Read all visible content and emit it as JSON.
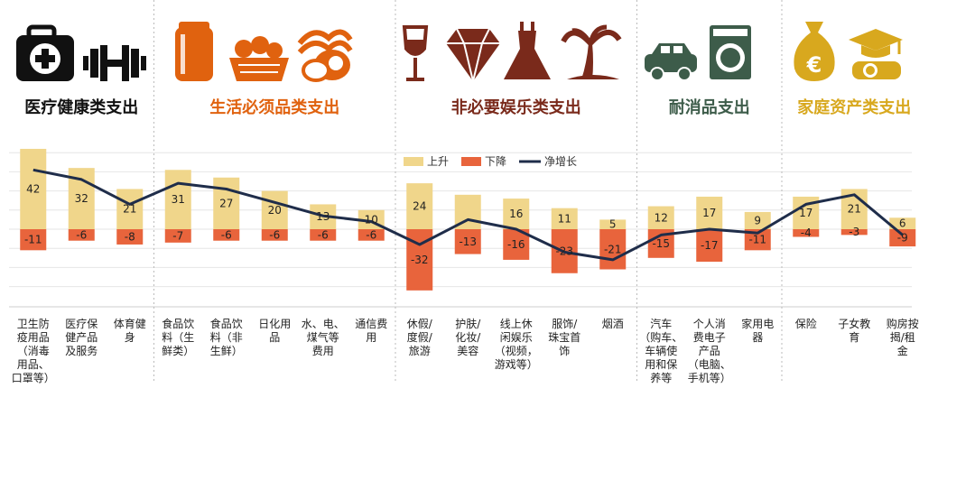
{
  "chart_data": {
    "type": "bar",
    "categories": [
      "卫生防疫用品（消毒用品、口罩等）",
      "医疗保健产品及服务",
      "体育健身",
      "食品饮料（生鲜类）",
      "食品饮料（非生鲜）",
      "日化用品",
      "水、电、煤气等费用",
      "通信费用",
      "休假/度假/旅游",
      "护肤/化妆/美容",
      "线上休闲娱乐（视频，游戏等）",
      "服饰/珠宝首饰",
      "烟酒",
      "汽车（购车、车辆使用和保养等",
      "个人消费电子产品（电脑、手机等）",
      "家用电器",
      "保险",
      "子女教育",
      "购房按揭/租金"
    ],
    "category_lines": [
      [
        "卫生防",
        "疫用品",
        "（消毒",
        "用品、",
        "口罩等）"
      ],
      [
        "医疗保",
        "健产品",
        "及服务"
      ],
      [
        "体育健",
        "身"
      ],
      [
        "食品饮",
        "料（生",
        "鲜类）"
      ],
      [
        "食品饮",
        "料（非",
        "生鲜）"
      ],
      [
        "日化用",
        "品"
      ],
      [
        "水、电、",
        "煤气等",
        "费用"
      ],
      [
        "通信费",
        "用"
      ],
      [
        "休假/",
        "度假/",
        "旅游"
      ],
      [
        "护肤/",
        "化妆/",
        "美容"
      ],
      [
        "线上休",
        "闲娱乐",
        "（视频，",
        "游戏等）"
      ],
      [
        "服饰/",
        "珠宝首",
        "饰"
      ],
      [
        "烟酒"
      ],
      [
        "汽车",
        "（购车、",
        "车辆使",
        "用和保",
        "养等"
      ],
      [
        "个人消",
        "费电子",
        "产品",
        "（电脑、",
        "手机等）"
      ],
      [
        "家用电",
        "器"
      ],
      [
        "保险"
      ],
      [
        "子女教",
        "育"
      ],
      [
        "购房按",
        "揭/租",
        "金"
      ]
    ],
    "series": [
      {
        "name": "上升",
        "color": "#f0d68b",
        "values": [
          42,
          32,
          21,
          31,
          27,
          20,
          13,
          10,
          24,
          18,
          16,
          11,
          5,
          12,
          17,
          9,
          17,
          21,
          6
        ],
        "labels": [
          "42",
          "32",
          "21",
          "31",
          "27",
          "20",
          "13",
          "10",
          "24",
          "",
          "16",
          "11",
          "5",
          "12",
          "17",
          "9",
          "17",
          "21",
          "6"
        ]
      },
      {
        "name": "下降",
        "color": "#e8643c",
        "values": [
          -11,
          -6,
          -8,
          -7,
          -6,
          -6,
          -6,
          -6,
          -32,
          -13,
          -16,
          -23,
          -21,
          -15,
          -17,
          -11,
          -4,
          -3,
          -9
        ],
        "labels": [
          "-11",
          "-6",
          "-8",
          "-7",
          "-6",
          "-6",
          "-6",
          "-6",
          "-32",
          "-13",
          "-16",
          "-23",
          "-21",
          "-15",
          "-17",
          "-11",
          "-4",
          "-3",
          "-9"
        ]
      },
      {
        "name": "净增长",
        "color": "#1f2d4a",
        "values": [
          31,
          26,
          13,
          24,
          21,
          14,
          7,
          4,
          -8,
          5,
          0,
          -12,
          -16,
          -3,
          0,
          -2,
          13,
          18,
          -3
        ]
      }
    ],
    "groups": [
      {
        "title": "医疗健康类支出",
        "color": "#111111",
        "start": 0,
        "end": 2,
        "icons": [
          "first-aid-kit-icon",
          "dumbbell-icon"
        ]
      },
      {
        "title": "生活必须品类支出",
        "color": "#e0620f",
        "start": 3,
        "end": 7,
        "icons": [
          "soda-can-icon",
          "vegetable-basket-icon",
          "bacon-egg-icon"
        ]
      },
      {
        "title": "非必要娱乐类支出",
        "color": "#7a2a1b",
        "start": 8,
        "end": 12,
        "icons": [
          "wine-glass-icon",
          "diamond-icon",
          "dress-icon",
          "palm-tree-icon"
        ]
      },
      {
        "title": "耐消品支出",
        "color": "#3d5c4a",
        "start": 13,
        "end": 15,
        "icons": [
          "car-icon",
          "washing-machine-icon"
        ]
      },
      {
        "title": "家庭资产类支出",
        "color": "#d8a81e",
        "start": 16,
        "end": 18,
        "icons": [
          "money-bag-icon",
          "graduation-cap-icon"
        ]
      }
    ],
    "ylim": [
      -35,
      45
    ],
    "grid": true,
    "legend_position": "top-center"
  }
}
